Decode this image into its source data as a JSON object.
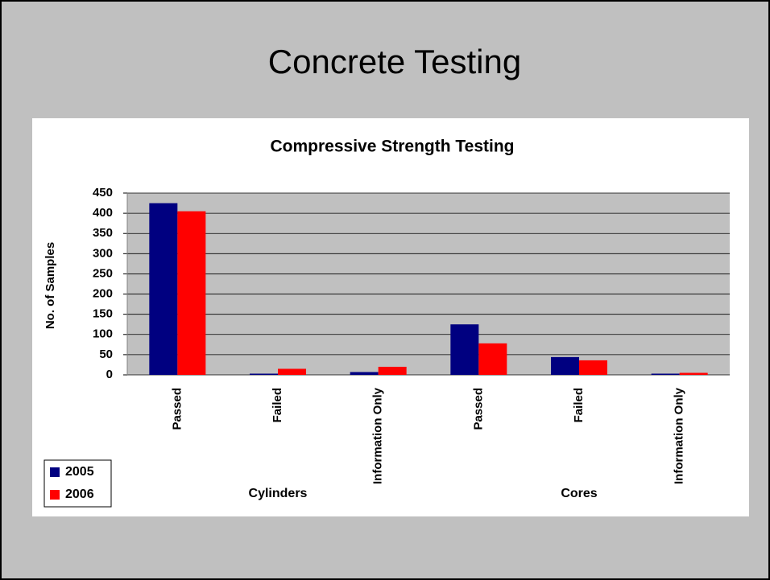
{
  "slide_title": "Concrete Testing",
  "chart_data": {
    "type": "bar",
    "title": "Compressive Strength Testing",
    "y_label": "No. of Samples",
    "categories": [
      "Passed",
      "Failed",
      "Information Only",
      "Passed",
      "Failed",
      "Information Only"
    ],
    "category_groups": [
      "Cylinders",
      "Cores"
    ],
    "series": [
      {
        "name": "2005",
        "color": "#000080",
        "values": [
          425,
          3,
          7,
          125,
          44,
          3
        ]
      },
      {
        "name": "2006",
        "color": "#ff0000",
        "values": [
          405,
          15,
          20,
          78,
          36,
          5
        ]
      }
    ],
    "ylim": [
      0,
      450
    ],
    "yticks": [
      0,
      50,
      100,
      150,
      200,
      250,
      300,
      350,
      400,
      450
    ],
    "grid": true,
    "legend": "bottom-left"
  }
}
